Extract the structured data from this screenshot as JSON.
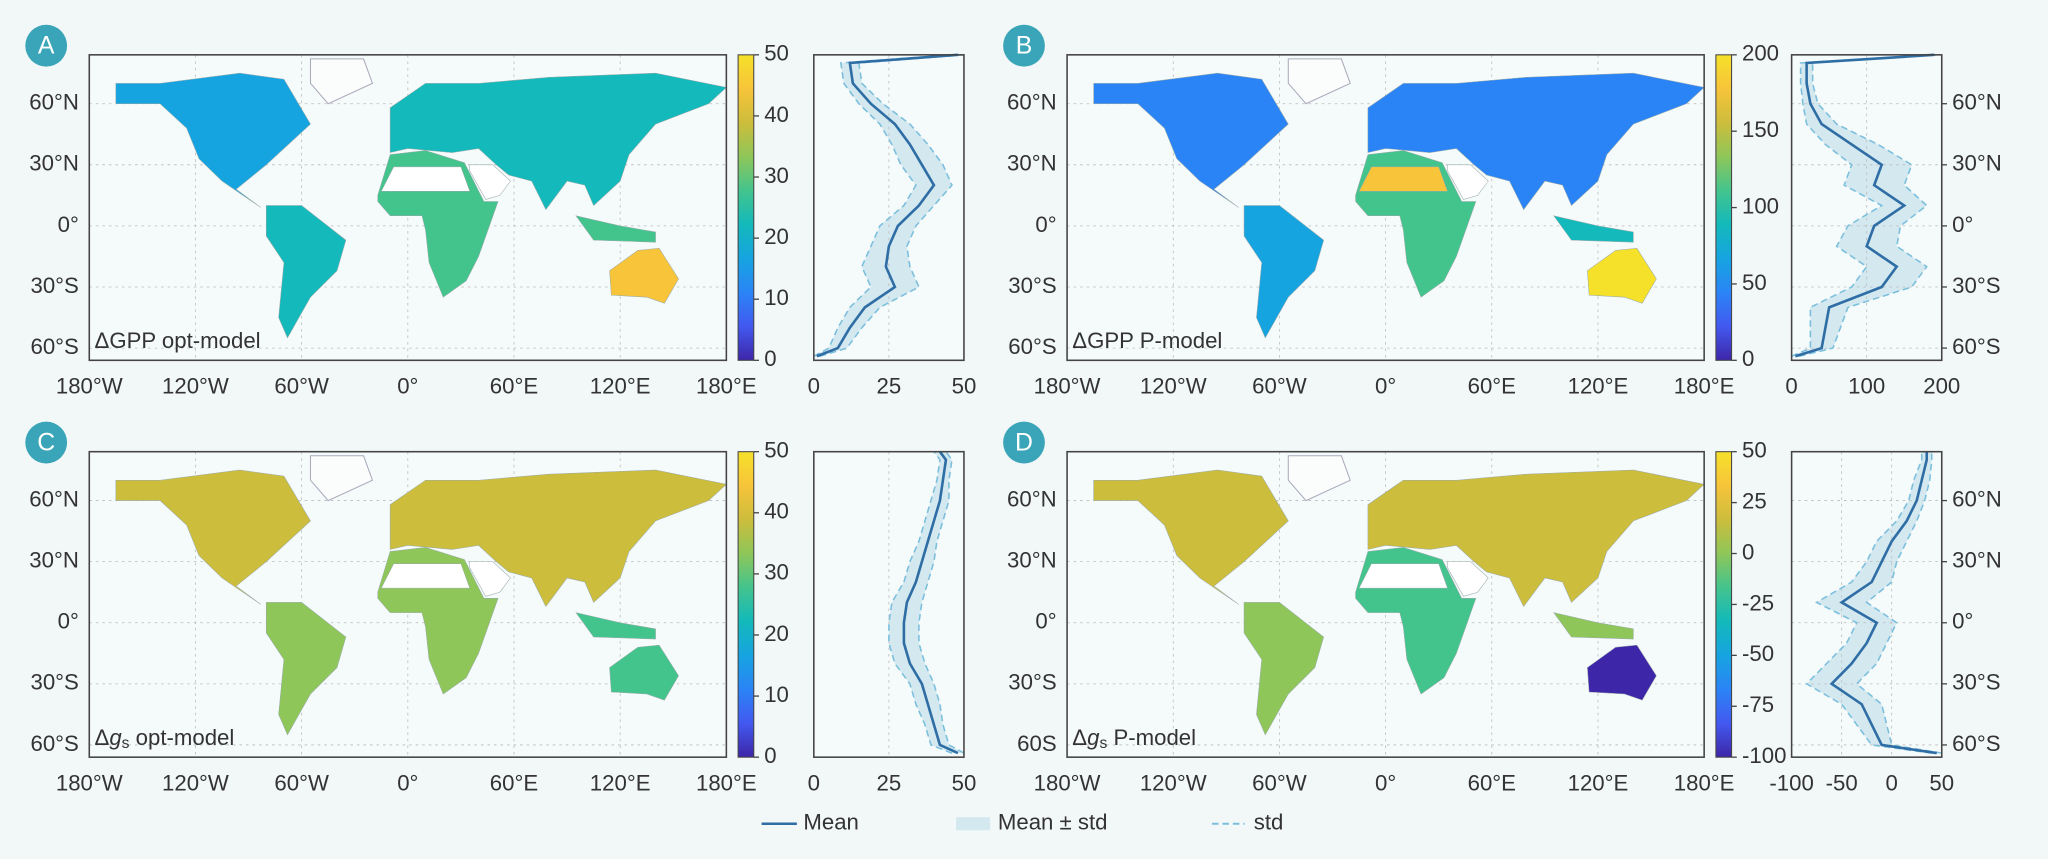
{
  "chart_data": [
    {
      "type": "map",
      "label": "A",
      "title": [
        "ΔGPP opt-model"
      ],
      "xlim": [
        -180,
        180
      ],
      "ylim": [
        -66,
        84
      ],
      "xticks": [
        {
          "value": -180,
          "label": "180°W"
        },
        {
          "value": -120,
          "label": "120°W"
        },
        {
          "value": -60,
          "label": "60°W"
        },
        {
          "value": 0,
          "label": "0°"
        },
        {
          "value": 60,
          "label": "60°E"
        },
        {
          "value": 120,
          "label": "120°E"
        },
        {
          "value": 180,
          "label": "180°E"
        }
      ],
      "yticks": [
        {
          "value": 60,
          "label": "60°N"
        },
        {
          "value": 30,
          "label": "30°N"
        },
        {
          "value": 0,
          "label": "0°"
        },
        {
          "value": -30,
          "label": "30°S"
        },
        {
          "value": -60,
          "label": "60°S"
        }
      ],
      "colorbar": {
        "lim": [
          0,
          50
        ],
        "ticks": [
          0,
          10,
          20,
          30,
          40,
          50
        ]
      },
      "colormap": [
        "#3e26a8",
        "#4259f0",
        "#2b84f6",
        "#16a4e0",
        "#13b9bb",
        "#43c48d",
        "#8ec659",
        "#cdbd3c",
        "#f7c43a",
        "#f5e12a"
      ]
    },
    {
      "type": "line",
      "xlim": [
        0,
        50
      ],
      "xticks": [
        0,
        25,
        50
      ],
      "ylim": [
        -66,
        84
      ],
      "y": [
        -64,
        -60,
        -50,
        -40,
        -30,
        -20,
        -10,
        0,
        10,
        20,
        30,
        40,
        50,
        60,
        70,
        80,
        84
      ],
      "mean": {
        "color": "#2f6ea5",
        "values": [
          1,
          8,
          12,
          17,
          27,
          24,
          25,
          28,
          35,
          40,
          36,
          32,
          27,
          19,
          13,
          12,
          48
        ]
      },
      "std": {
        "color": "#7bbfdd",
        "band_color": "#d4e8f0",
        "values": [
          1,
          3,
          4,
          5,
          8,
          8,
          6,
          6,
          5,
          6,
          7,
          6,
          5,
          4,
          3,
          3,
          2
        ]
      }
    },
    {
      "type": "map",
      "label": "B",
      "title": [
        "ΔGPP P-model"
      ],
      "xlim": [
        -180,
        180
      ],
      "ylim": [
        -66,
        84
      ],
      "xticks": [
        {
          "value": -180,
          "label": "180°W"
        },
        {
          "value": -120,
          "label": "120°W"
        },
        {
          "value": -60,
          "label": "60°W"
        },
        {
          "value": 0,
          "label": "0°"
        },
        {
          "value": 60,
          "label": "60°E"
        },
        {
          "value": 120,
          "label": "120°E"
        },
        {
          "value": 180,
          "label": "180°E"
        }
      ],
      "yticks": [
        {
          "value": 60,
          "label": "60°N"
        },
        {
          "value": 30,
          "label": "30°N"
        },
        {
          "value": 0,
          "label": "0°"
        },
        {
          "value": -30,
          "label": "30°S"
        },
        {
          "value": -60,
          "label": "60°S"
        }
      ],
      "colorbar": {
        "lim": [
          0,
          200
        ],
        "ticks": [
          0,
          50,
          100,
          150,
          200
        ]
      },
      "colormap": [
        "#3e26a8",
        "#4259f0",
        "#2b84f6",
        "#16a4e0",
        "#13b9bb",
        "#43c48d",
        "#8ec659",
        "#cdbd3c",
        "#f7c43a",
        "#f5e12a"
      ]
    },
    {
      "type": "line",
      "xlim": [
        0,
        200
      ],
      "xticks": [
        0,
        100,
        200
      ],
      "ylim": [
        -66,
        84
      ],
      "yticks": [
        {
          "value": 60,
          "label": "60°N"
        },
        {
          "value": 30,
          "label": "30°N"
        },
        {
          "value": 0,
          "label": "0°"
        },
        {
          "value": -30,
          "label": "30°S"
        },
        {
          "value": -60,
          "label": "60°S"
        }
      ],
      "y": [
        -64,
        -60,
        -50,
        -40,
        -30,
        -20,
        -10,
        0,
        10,
        20,
        30,
        40,
        50,
        60,
        70,
        80,
        84
      ],
      "mean": {
        "color": "#2f6ea5",
        "values": [
          5,
          40,
          45,
          50,
          120,
          140,
          100,
          110,
          150,
          110,
          120,
          80,
          40,
          25,
          20,
          20,
          190
        ]
      },
      "std": {
        "color": "#7bbfdd",
        "band_color": "#d4e8f0",
        "values": [
          5,
          15,
          20,
          25,
          40,
          40,
          40,
          35,
          30,
          40,
          40,
          35,
          20,
          10,
          8,
          8,
          5
        ]
      }
    },
    {
      "type": "map",
      "label": "C",
      "title": [
        "Δ",
        "g",
        "s",
        " opt-model"
      ],
      "xlim": [
        -180,
        180
      ],
      "ylim": [
        -66,
        84
      ],
      "xticks": [
        {
          "value": -180,
          "label": "180°W"
        },
        {
          "value": -120,
          "label": "120°W"
        },
        {
          "value": -60,
          "label": "60°W"
        },
        {
          "value": 0,
          "label": "0°"
        },
        {
          "value": 60,
          "label": "60°E"
        },
        {
          "value": 120,
          "label": "120°E"
        },
        {
          "value": 180,
          "label": "180°E"
        }
      ],
      "yticks": [
        {
          "value": 60,
          "label": "60°N"
        },
        {
          "value": 30,
          "label": "30°N"
        },
        {
          "value": 0,
          "label": "0°"
        },
        {
          "value": -30,
          "label": "30°S"
        },
        {
          "value": -60,
          "label": "60°S"
        }
      ],
      "colorbar": {
        "lim": [
          0,
          50
        ],
        "ticks": [
          0,
          10,
          20,
          30,
          40,
          50
        ]
      },
      "colormap": [
        "#3e26a8",
        "#4259f0",
        "#2b84f6",
        "#16a4e0",
        "#13b9bb",
        "#43c48d",
        "#8ec659",
        "#cdbd3c",
        "#f7c43a",
        "#f5e12a"
      ]
    },
    {
      "type": "line",
      "xlim": [
        0,
        50
      ],
      "xticks": [
        0,
        25,
        50
      ],
      "ylim": [
        -66,
        84
      ],
      "y": [
        -64,
        -60,
        -50,
        -40,
        -30,
        -20,
        -10,
        0,
        10,
        20,
        30,
        40,
        50,
        60,
        70,
        80,
        84
      ],
      "mean": {
        "color": "#2f6ea5",
        "values": [
          48,
          42,
          40,
          38,
          36,
          32,
          30,
          30,
          31,
          34,
          36,
          38,
          40,
          42,
          43,
          44,
          42
        ]
      },
      "std": {
        "color": "#7bbfdd",
        "band_color": "#d4e8f0",
        "values": [
          2,
          3,
          3,
          4,
          4,
          5,
          5,
          5,
          5,
          4,
          4,
          3,
          3,
          3,
          2,
          2,
          2
        ]
      }
    },
    {
      "type": "map",
      "label": "D",
      "title": [
        "Δ",
        "g",
        "s",
        " P-model"
      ],
      "xlim": [
        -180,
        180
      ],
      "ylim": [
        -66,
        84
      ],
      "xticks": [
        {
          "value": -180,
          "label": "180°W"
        },
        {
          "value": -120,
          "label": "120°W"
        },
        {
          "value": -60,
          "label": "60°W"
        },
        {
          "value": 0,
          "label": "0°"
        },
        {
          "value": 60,
          "label": "60°E"
        },
        {
          "value": 120,
          "label": "120°E"
        },
        {
          "value": 180,
          "label": "180°E"
        }
      ],
      "yticks": [
        {
          "value": 60,
          "label": "60°N"
        },
        {
          "value": 30,
          "label": "30°N"
        },
        {
          "value": 0,
          "label": "0°"
        },
        {
          "value": -30,
          "label": "30°S"
        },
        {
          "value": -60,
          "label": "60S"
        }
      ],
      "colorbar": {
        "lim": [
          -100,
          50
        ],
        "ticks": [
          -100,
          -75,
          -50,
          -25,
          0,
          25,
          50
        ]
      },
      "colormap": [
        "#3e26a8",
        "#4259f0",
        "#2b84f6",
        "#16a4e0",
        "#13b9bb",
        "#43c48d",
        "#8ec659",
        "#cdbd3c",
        "#f7c43a",
        "#f5e12a"
      ]
    },
    {
      "type": "line",
      "xlim": [
        -100,
        50
      ],
      "xticks": [
        -100,
        -50,
        0,
        50
      ],
      "ylim": [
        -66,
        84
      ],
      "yticks": [
        {
          "value": 60,
          "label": "60°N"
        },
        {
          "value": 30,
          "label": "30°N"
        },
        {
          "value": 0,
          "label": "0°"
        },
        {
          "value": -30,
          "label": "30°S"
        },
        {
          "value": -60,
          "label": "60°S"
        }
      ],
      "y": [
        -64,
        -60,
        -50,
        -40,
        -30,
        -20,
        -10,
        0,
        10,
        20,
        30,
        40,
        50,
        60,
        70,
        80,
        84
      ],
      "mean": {
        "color": "#2f6ea5",
        "values": [
          45,
          -10,
          -20,
          -30,
          -60,
          -40,
          -25,
          -15,
          -50,
          -20,
          -10,
          0,
          15,
          25,
          30,
          35,
          35
        ]
      },
      "std": {
        "color": "#7bbfdd",
        "band_color": "#d4e8f0",
        "values": [
          5,
          10,
          15,
          20,
          25,
          25,
          20,
          20,
          25,
          20,
          15,
          15,
          10,
          8,
          8,
          5,
          5
        ]
      }
    }
  ],
  "legend": [
    "Mean",
    "Mean ± std",
    "std"
  ]
}
